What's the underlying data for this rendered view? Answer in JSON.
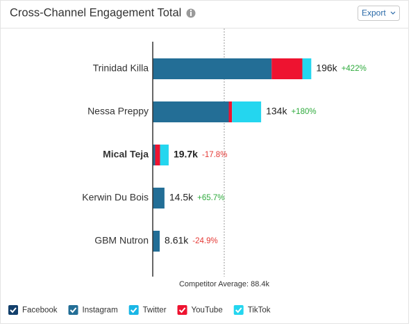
{
  "chart_data": {
    "type": "stacked-bar",
    "title": "Cross-Channel Engagement Total",
    "export_label": "Export",
    "categories": [
      "Trinidad Killa",
      "Nessa Preppy",
      "Mical Teja",
      "Kerwin Du Bois",
      "GBM Nutron"
    ],
    "highlight_index": 2,
    "series": [
      {
        "name": "Facebook",
        "color": "#123f6b",
        "values": [
          0,
          0,
          0,
          0,
          0
        ]
      },
      {
        "name": "Instagram",
        "color": "#236e96",
        "values": [
          147000,
          94000,
          3000,
          14500,
          8610
        ]
      },
      {
        "name": "Twitter",
        "color": "#19b6e6",
        "values": [
          0,
          0,
          0,
          0,
          0
        ]
      },
      {
        "name": "YouTube",
        "color": "#ee1330",
        "values": [
          38000,
          4000,
          6000,
          0,
          0
        ]
      },
      {
        "name": "TikTok",
        "color": "#24d6ef",
        "values": [
          11000,
          36000,
          10700,
          0,
          0
        ]
      }
    ],
    "totals": [
      196000,
      134000,
      19700,
      14500,
      8610
    ],
    "total_labels": [
      "196k",
      "134k",
      "19.7k",
      "14.5k",
      "8.61k"
    ],
    "changes": [
      422,
      180,
      -17.8,
      65.7,
      -24.9
    ],
    "change_labels": [
      "+422%",
      "+180%",
      "-17.8%",
      "+65.7%",
      "-24.9%"
    ],
    "reference": {
      "value": 88400,
      "label": "Competitor Average: 88.4k"
    },
    "xlim": [
      0,
      300000
    ]
  }
}
